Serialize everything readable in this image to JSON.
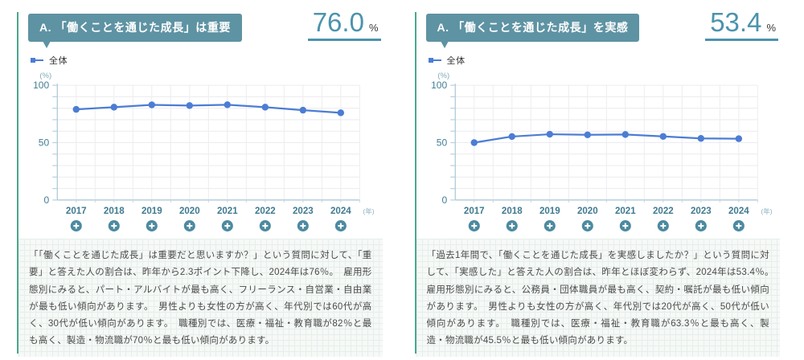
{
  "panels": [
    {
      "badge_label": "A. 「働くことを通じた成長」は重要",
      "headline_value": "76.0",
      "headline_unit": "%",
      "legend_label": "全体",
      "description": "「「働くことを通じた成長」は重要だと思いますか？」という質問に対して、「重要」と答えた人の割合は、昨年から2.3ポイント下降し、2024年は76％。　雇用形態別にみると、パート・アルバイトが最も高く、フリーランス・自営業・自由業が最も低い傾向があります。　男性よりも女性の方が高く、年代別では60代が高く、30代が低い傾向があります。　職種別では、医療・福祉・教育職が82％と最も高く、製造・物流職が70％と最も低い傾向があります。"
    },
    {
      "badge_label": "A. 「働くことを通じた成長」を実感",
      "headline_value": "53.4",
      "headline_unit": "%",
      "legend_label": "全体",
      "description": "「過去1年間で、「働くことを通じた成長」を実感しましたか？」という質問に対して、「実感した」と答えた人の割合は、昨年とほぼ変わらず、2024年は53.4％。　雇用形態別にみると、公務員・団体職員が最も高く、契約・嘱託が最も低い傾向があります。　男性よりも女性の方が高く、年代別では20代が高く、50代が低い傾向があります。　職種別では、医療・福祉・教育職が63.3％と最も高く、製造・物流職が45.5％と最も低い傾向があります。"
    }
  ],
  "chart_data": [
    {
      "type": "line",
      "title": "A. 「働くことを通じた成長」は重要",
      "categories": [
        "2017",
        "2018",
        "2019",
        "2020",
        "2021",
        "2022",
        "2023",
        "2024"
      ],
      "series": [
        {
          "name": "全体",
          "values": [
            79.0,
            80.9,
            82.9,
            82.3,
            83.0,
            80.9,
            78.3,
            76.0
          ]
        }
      ],
      "ylabel": "(%)",
      "xlabel": "(年)",
      "ylim": [
        0,
        100
      ],
      "yticks": [
        0,
        50,
        100
      ],
      "grid": true,
      "legend_position": "top-left",
      "line_color": "#4c7dd4",
      "headline_value_pct": 76.0
    },
    {
      "type": "line",
      "title": "A. 「働くことを通じた成長」を実感",
      "categories": [
        "2017",
        "2018",
        "2019",
        "2020",
        "2021",
        "2022",
        "2023",
        "2024"
      ],
      "series": [
        {
          "name": "全体",
          "values": [
            50.0,
            55.3,
            57.3,
            56.8,
            57.1,
            55.4,
            53.7,
            53.4
          ]
        }
      ],
      "ylabel": "(%)",
      "xlabel": "(年)",
      "ylim": [
        0,
        100
      ],
      "yticks": [
        0,
        50,
        100
      ],
      "grid": true,
      "legend_position": "top-left",
      "line_color": "#4c7dd4",
      "headline_value_pct": 53.4
    }
  ],
  "colors": {
    "panel_frame_green": "#4ba78c",
    "badge_teal": "#5e93a3",
    "headline_teal": "#4b93ad",
    "axis_label_teal": "#3f7b90",
    "line_blue": "#4c7dd4",
    "plus_button_teal": "#4c8aa0",
    "grid_line": "#ebecef",
    "axis_line": "#a9c6d6",
    "body_text": "#4b4b4b"
  }
}
